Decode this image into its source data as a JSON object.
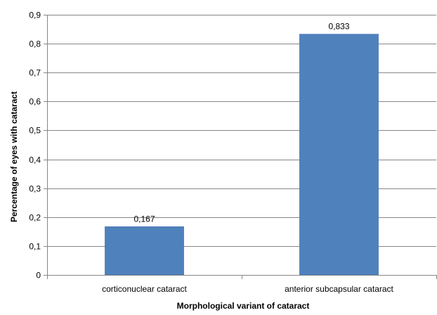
{
  "chart_data": {
    "type": "bar",
    "title": "",
    "xlabel": "Morphological  variant of cataract",
    "ylabel": "Percentage of eyes with cataract",
    "categories": [
      "corticonuclear cataract",
      "anterior subcapsular cataract"
    ],
    "values": [
      0.167,
      0.833
    ],
    "value_labels": [
      "0,167",
      "0,833"
    ],
    "ylim": [
      0,
      0.9
    ],
    "yticks": [
      0,
      0.1,
      0.2,
      0.3,
      0.4,
      0.5,
      0.6,
      0.7,
      0.8,
      0.9
    ],
    "ytick_labels": [
      "0",
      "0,1",
      "0,2",
      "0,3",
      "0,4",
      "0,5",
      "0,6",
      "0,7",
      "0,8",
      "0,9"
    ],
    "grid": true,
    "legend": "none",
    "colors": {
      "bar": "#4F81BD",
      "bar_edge": "#3A6BA8",
      "gridline": "#878787",
      "axis": "#878787"
    }
  }
}
